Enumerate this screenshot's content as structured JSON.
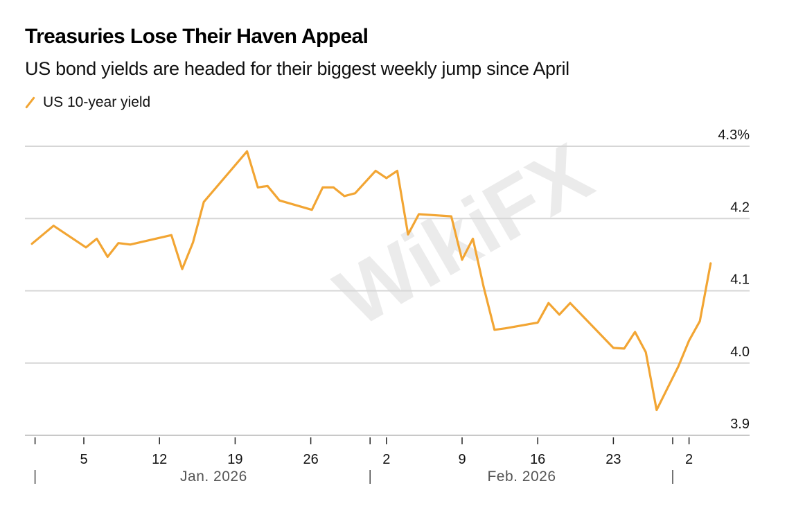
{
  "chart_data": {
    "type": "line",
    "title": "Treasuries Lose Their Haven Appeal",
    "subtitle": "US bond yields are headed for their biggest weekly jump since April",
    "legend": [
      {
        "name": "US 10-year yield",
        "color": "#f2a533"
      }
    ],
    "legend_placement": "top-left",
    "ylabel": "",
    "xlabel": "",
    "ylim": [
      3.9,
      4.3
    ],
    "y_ticks": [
      {
        "value": 4.3,
        "label": "4.3%"
      },
      {
        "value": 4.2,
        "label": "4.2"
      },
      {
        "value": 4.1,
        "label": "4.1"
      },
      {
        "value": 4.0,
        "label": "4.0"
      },
      {
        "value": 3.9,
        "label": "3.9"
      }
    ],
    "x_ticks": [
      {
        "day": 5,
        "label": "5"
      },
      {
        "day": 12,
        "label": "12"
      },
      {
        "day": 19,
        "label": "19"
      },
      {
        "day": 26,
        "label": "26"
      },
      {
        "day": 33,
        "label": "2"
      },
      {
        "day": 40,
        "label": "9"
      },
      {
        "day": 47,
        "label": "16"
      },
      {
        "day": 54,
        "label": "23"
      },
      {
        "day": 61,
        "label": "2"
      }
    ],
    "month_labels": [
      {
        "label": "Jan. 2026",
        "center_day": 16.5
      },
      {
        "label": "Feb. 2026",
        "center_day": 45
      }
    ],
    "month_boundaries": [
      1,
      32,
      60
    ],
    "xlim": [
      -0.5,
      67
    ],
    "grid": true,
    "series": [
      {
        "name": "US 10-year yield",
        "color": "#f2a533",
        "x": [
          0.2,
          2.2,
          5.2,
          6.2,
          7.2,
          8.2,
          9.3,
          13.1,
          14.1,
          15.1,
          16.1,
          20.1,
          21.1,
          22.0,
          23.1,
          26.1,
          27.1,
          28.1,
          29.1,
          30.1,
          32.0,
          33.0,
          34.0,
          35.0,
          36.0,
          39.0,
          40.0,
          41.0,
          42.0,
          43.0,
          44.0,
          47.0,
          48.0,
          49.0,
          50.0,
          52.0,
          54.0,
          55.0,
          56.0,
          57.0,
          58.0,
          59.0,
          60.0,
          61.0,
          62.0,
          63.0
        ],
        "values": [
          4.165,
          4.19,
          4.16,
          4.172,
          4.147,
          4.166,
          4.164,
          4.177,
          4.13,
          4.167,
          4.223,
          4.293,
          4.243,
          4.245,
          4.225,
          4.212,
          4.243,
          4.243,
          4.231,
          4.235,
          4.266,
          4.256,
          4.266,
          4.178,
          4.206,
          4.203,
          4.143,
          4.172,
          4.105,
          4.046,
          4.048,
          4.056,
          4.083,
          4.067,
          4.083,
          4.052,
          4.021,
          4.02,
          4.043,
          4.015,
          3.935,
          3.965,
          3.995,
          4.031,
          4.058,
          4.138
        ]
      }
    ]
  },
  "watermark": "WikiFX"
}
